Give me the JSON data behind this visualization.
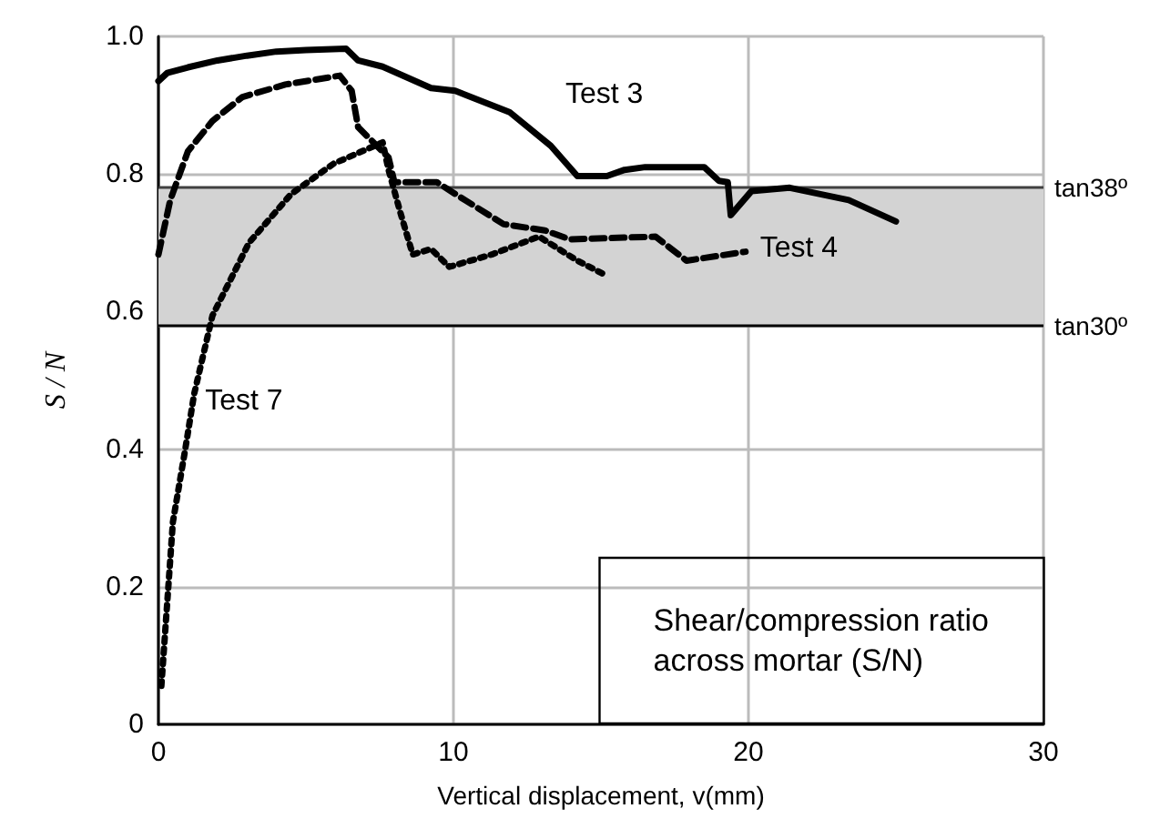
{
  "chart_data": {
    "type": "line",
    "xlabel": "Vertical displacement, v(mm)",
    "ylabel": "S / N",
    "xlim": [
      0,
      30
    ],
    "xticks": [
      0,
      10,
      20,
      30
    ],
    "ylim": [
      0,
      1
    ],
    "yticks": [
      0,
      0.2,
      0.4,
      0.6,
      0.8,
      {
        "value": 1,
        "label": "1.0"
      }
    ],
    "grid": true,
    "legend": false,
    "marker": "none",
    "series": [
      {
        "name": "Test 3",
        "color": "#000000",
        "line_style": "solid",
        "x": [
          0,
          0.3,
          1,
          2,
          3,
          4,
          5,
          6.36,
          6.77,
          7.6,
          9.24,
          10.06,
          11.9,
          13.3,
          14.2,
          15.2,
          15.8,
          16.5,
          18.5,
          19,
          19.3,
          19.4,
          20.1,
          21.4,
          23.4,
          25
        ],
        "values": [
          0.935,
          0.947,
          0.955,
          0.965,
          0.972,
          0.978,
          0.98,
          0.982,
          0.965,
          0.956,
          0.925,
          0.921,
          0.89,
          0.841,
          0.797,
          0.797,
          0.806,
          0.81,
          0.81,
          0.79,
          0.788,
          0.74,
          0.775,
          0.78,
          0.762,
          0.731
        ]
      },
      {
        "name": "Test 4",
        "color": "#000000",
        "line_style": "dashed",
        "x": [
          0,
          0.4,
          1,
          1.83,
          2.85,
          4.3,
          6.15,
          6.55,
          6.77,
          7.8,
          8,
          9.44,
          10.06,
          11.7,
          13.1,
          13.95,
          16.85,
          17.9,
          19.9
        ],
        "values": [
          0.683,
          0.762,
          0.833,
          0.877,
          0.912,
          0.93,
          0.943,
          0.921,
          0.868,
          0.824,
          0.788,
          0.788,
          0.771,
          0.727,
          0.718,
          0.705,
          0.709,
          0.674,
          0.687
        ]
      },
      {
        "name": "Test 7",
        "color": "#000000",
        "line_style": "dotted",
        "x": [
          0.1,
          0.29,
          0.49,
          0.91,
          1.21,
          1.83,
          3.07,
          4.5,
          5.94,
          7.6,
          7.8,
          8.2,
          8.62,
          9.24,
          9.86,
          11.3,
          12.9,
          14.2,
          15.2
        ],
        "values": [
          0.056,
          0.172,
          0.294,
          0.4,
          0.48,
          0.594,
          0.7,
          0.771,
          0.815,
          0.846,
          0.806,
          0.744,
          0.683,
          0.691,
          0.665,
          0.683,
          0.709,
          0.674,
          0.652
        ]
      }
    ],
    "bands": [
      {
        "axis": "y",
        "from": 0.577,
        "to": 0.781,
        "color": "#d3d3d3"
      }
    ],
    "ref_lines": [
      {
        "axis": "y",
        "value": 0.781,
        "label": "tan38º",
        "color": "#404040"
      },
      {
        "axis": "y",
        "value": 0.577,
        "label": "tan30º",
        "color": "#000000"
      }
    ],
    "annotations": [
      "Shear/compression ratio\nacross mortar (S/N)"
    ]
  }
}
